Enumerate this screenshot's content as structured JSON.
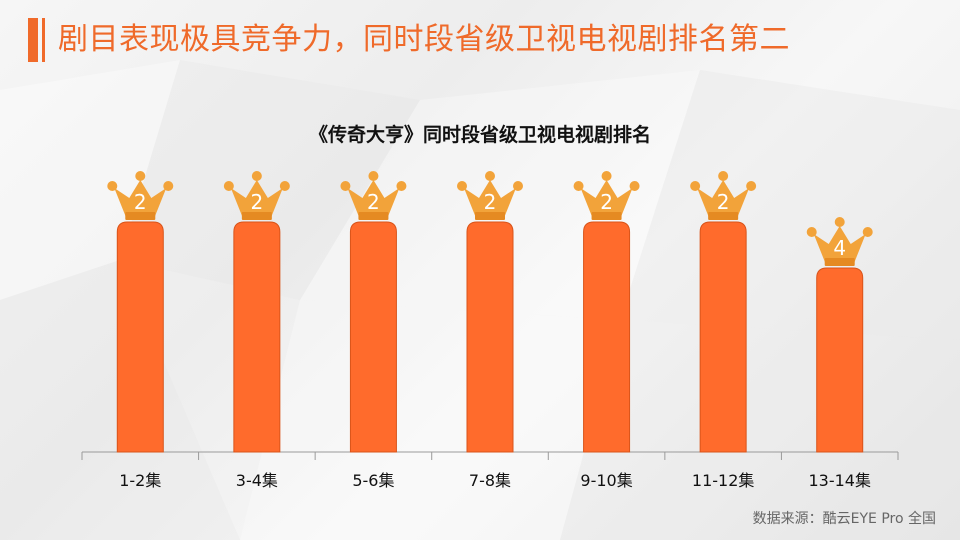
{
  "page_title": "剧目表现极具竞争力，同时段省级卫视电视剧排名第二",
  "source": "数据来源：酷云EYE Pro 全国",
  "colors": {
    "accent": "#f06a2a",
    "bar": "#ff6b2c",
    "crown": "#f2a33a"
  },
  "icons": {
    "crown": "crown-icon"
  },
  "chart_data": {
    "type": "bar",
    "title": "《传奇大亨》同时段省级卫视电视剧排名",
    "categories": [
      "1-2集",
      "3-4集",
      "5-6集",
      "7-8集",
      "9-10集",
      "11-12集",
      "13-14集"
    ],
    "values": [
      2,
      2,
      2,
      2,
      2,
      2,
      4
    ],
    "xlabel": "",
    "ylabel": "",
    "y_axis": "inverted rank (rank 1 highest)",
    "grid": false
  }
}
